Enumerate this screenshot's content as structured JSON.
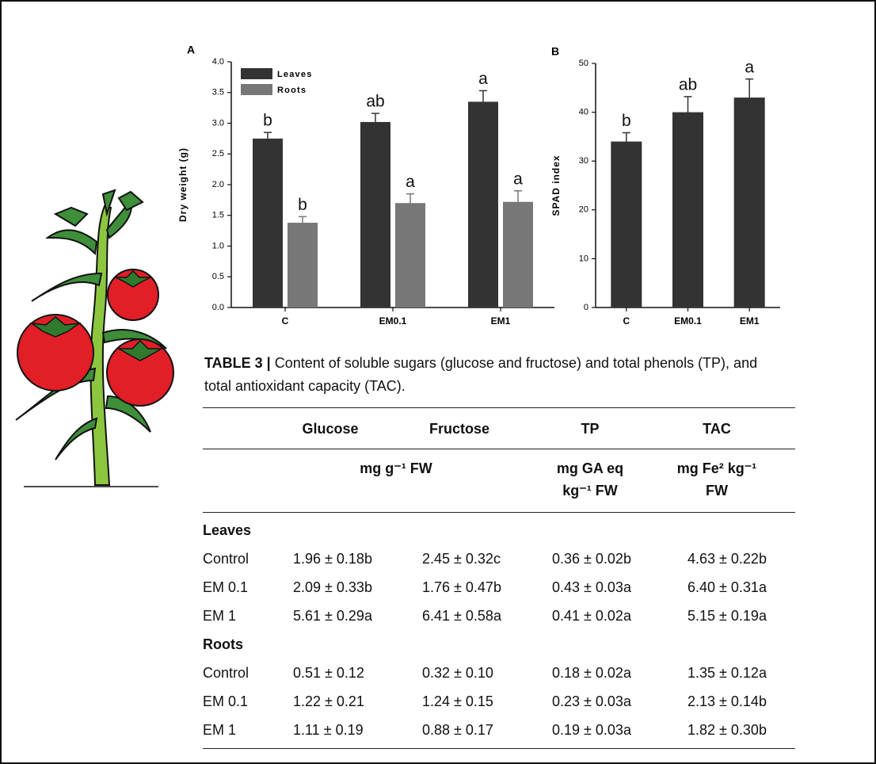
{
  "chart_data": [
    {
      "type": "bar",
      "panel": "A",
      "ylabel": "Dry weight (g)",
      "categories": [
        "C",
        "EM0.1",
        "EM1"
      ],
      "series": [
        {
          "name": "Leaves",
          "color": "#333333",
          "values": [
            2.75,
            3.02,
            3.35
          ],
          "errors": [
            0.1,
            0.14,
            0.18
          ],
          "letters": [
            "b",
            "ab",
            "a"
          ]
        },
        {
          "name": "Roots",
          "color": "#777777",
          "values": [
            1.38,
            1.7,
            1.72
          ],
          "errors": [
            0.1,
            0.15,
            0.18
          ],
          "letters": [
            "b",
            "a",
            "a"
          ]
        }
      ],
      "ylim": [
        0,
        4
      ],
      "yticks": [
        {
          "value": 0,
          "label": "0.0"
        },
        {
          "value": 0.5,
          "label": "0.5"
        },
        {
          "value": 1,
          "label": "1.0"
        },
        {
          "value": 1.5,
          "label": "1.5"
        },
        {
          "value": 2,
          "label": "2.0"
        },
        {
          "value": 2.5,
          "label": "2.5"
        },
        {
          "value": 3,
          "label": "3.0"
        },
        {
          "value": 3.5,
          "label": "3.5"
        },
        {
          "value": 4,
          "label": "4.0"
        }
      ],
      "legend": "upper-left"
    },
    {
      "type": "bar",
      "panel": "B",
      "ylabel": "SPAD index",
      "categories": [
        "C",
        "EM0.1",
        "EM1"
      ],
      "values": [
        34,
        40,
        43
      ],
      "errors": [
        1.8,
        3.2,
        3.8
      ],
      "letters": [
        "b",
        "ab",
        "a"
      ],
      "color": "#333333",
      "ylim": [
        0,
        50
      ],
      "yticks": [
        0,
        10,
        20,
        30,
        40,
        50
      ]
    }
  ],
  "table": {
    "caption_label": "TABLE 3 |",
    "caption": "Content of soluble sugars (glucose and fructose) and total phenols (TP), and total antioxidant capacity (TAC).",
    "header": [
      "Glucose",
      "Fructose",
      "TP",
      "TAC"
    ],
    "units": [
      "mg g⁻¹ FW",
      "mg GA eq kg⁻¹ FW",
      "mg Fe² kg⁻¹ FW"
    ],
    "groups": [
      {
        "name": "Leaves",
        "rows": [
          [
            "Control",
            "1.96 ± 0.18b",
            "2.45 ± 0.32c",
            "0.36 ± 0.02b",
            "4.63 ± 0.22b"
          ],
          [
            "EM 0.1",
            "2.09 ± 0.33b",
            "1.76 ± 0.47b",
            "0.43 ± 0.03a",
            "6.40 ± 0.31a"
          ],
          [
            "EM 1",
            "5.61 ± 0.29a",
            "6.41 ± 0.58a",
            "0.41 ± 0.02a",
            "5.15 ± 0.19a"
          ]
        ]
      },
      {
        "name": "Roots",
        "rows": [
          [
            "Control",
            "0.51 ± 0.12",
            "0.32 ± 0.10",
            "0.18 ± 0.02a",
            "1.35 ± 0.12a"
          ],
          [
            "EM 0.1",
            "1.22 ± 0.21",
            "1.24 ± 0.15",
            "0.23 ± 0.03a",
            "2.13 ± 0.14b"
          ],
          [
            "EM 1",
            "1.11 ± 0.19",
            "0.88 ± 0.17",
            "0.19 ± 0.03a",
            "1.82 ± 0.30b"
          ]
        ]
      }
    ]
  }
}
